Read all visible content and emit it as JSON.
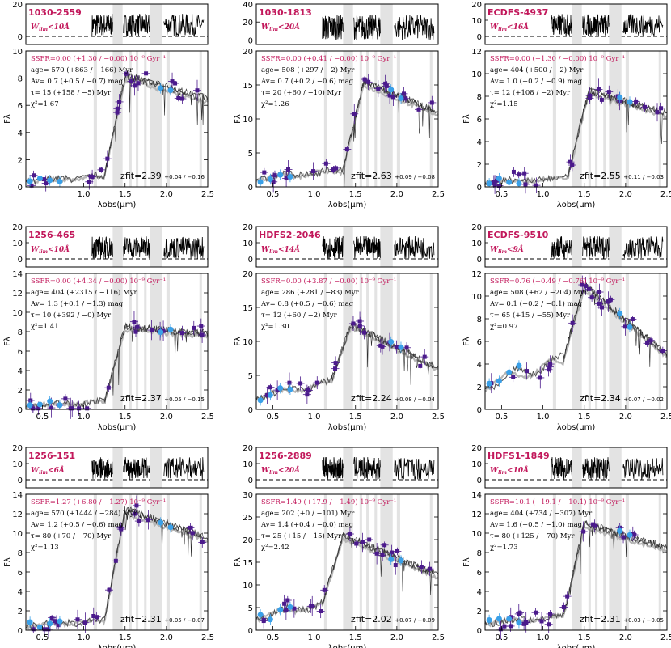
{
  "figure": {
    "x_axis_label": "λobs(μm)",
    "y_axis_label": "Fλ",
    "colors": {
      "name": "#c2185b",
      "photometry_purple": "#4b1a8c",
      "photometry_blue": "#3aa0e8",
      "model_dark": "#555555",
      "model_light": "#b5b5b5",
      "spectrum": "#000000",
      "shade": "#e3e3e3"
    }
  },
  "chart_data": [
    {
      "type": "scatter",
      "name": "1030-2559",
      "w_limit": "W",
      "w_sub": "lim",
      "w_text": "<10Å",
      "ssfr": "SSFR=0.00",
      "ssfr_unc": "+1.30 / −0.00",
      "ssfr_unit": "10⁻⁹ Gyr⁻¹",
      "age": "570",
      "age_unc": "+863 / −166",
      "av": "0.7",
      "av_unc": "+0.5 / −0.7",
      "tau": "15",
      "tau_unc": "+158 / −5",
      "chi2": "1.67",
      "zfit": "2.39",
      "zfit_unc": "+0.04 / −0.16",
      "ylim": [
        0,
        10
      ],
      "yticks": [
        0,
        2,
        4,
        6,
        8,
        10
      ],
      "xlim": [
        0.3,
        2.5
      ],
      "xticks": [
        1.0,
        1.5,
        2.0,
        2.5
      ],
      "spec_ylim": [
        -5,
        20
      ],
      "spec_yticks": [
        0,
        20
      ],
      "break_um": 1.3,
      "peak": 8.2,
      "plateau": 6.5,
      "blue_level": 0.8
    },
    {
      "type": "scatter",
      "name": "1030-1813",
      "w_limit": "W",
      "w_sub": "lim",
      "w_text": "<20Å",
      "ssfr": "SSFR=0.00",
      "ssfr_unc": "+0.41 / −0.00",
      "ssfr_unit": "10⁻⁹ Gyr⁻¹",
      "age": "508",
      "age_unc": "+297 / −2",
      "av": "0.7",
      "av_unc": "+0.2 / −0.6",
      "tau": "20",
      "tau_unc": "+60 / −10",
      "chi2": "1.26",
      "zfit": "2.63",
      "zfit_unc": "+0.09 / −0.08",
      "ylim": [
        0,
        20
      ],
      "yticks": [
        0,
        5,
        10,
        15,
        20
      ],
      "xlim": [
        0.3,
        2.5
      ],
      "xticks": [
        0.5,
        1.0,
        1.5,
        2.0,
        2.5
      ],
      "spec_ylim": [
        -5,
        40
      ],
      "spec_yticks": [
        0,
        20,
        40
      ],
      "break_um": 1.4,
      "peak": 15.5,
      "plateau": 11.0,
      "blue_level": 2.5
    },
    {
      "type": "scatter",
      "name": "ECDFS-4937",
      "w_limit": "W",
      "w_sub": "lim",
      "w_text": "<16Å",
      "ssfr": "SSFR=0.00",
      "ssfr_unc": "+1.30 / −0.00",
      "ssfr_unit": "10⁻⁹ Gyr⁻¹",
      "age": "404",
      "age_unc": "+500 / −2",
      "av": "1.0",
      "av_unc": "+0.2 / −0.9",
      "tau": "12",
      "tau_unc": "+108 / −2",
      "chi2": "1.15",
      "zfit": "2.55",
      "zfit_unc": "+0.11 / −0.03",
      "ylim": [
        0,
        12
      ],
      "yticks": [
        0,
        2,
        4,
        6,
        8,
        10,
        12
      ],
      "xlim": [
        0.3,
        2.5
      ],
      "xticks": [
        0.5,
        1.0,
        1.5,
        2.0,
        2.5
      ],
      "spec_ylim": [
        -5,
        20
      ],
      "spec_yticks": [
        0,
        10,
        20
      ],
      "break_um": 1.35,
      "peak": 8.5,
      "plateau": 6.5,
      "blue_level": 0.8
    },
    {
      "type": "scatter",
      "name": "1256-465",
      "w_limit": "W",
      "w_sub": "lim",
      "w_text": "<10Å",
      "ssfr": "SSFR=0.00",
      "ssfr_unc": "+4.34 / −0.00",
      "ssfr_unit": "10⁻⁹ Gyr⁻¹",
      "age": "404",
      "age_unc": "+2315 / −116",
      "av": "1.3",
      "av_unc": "+0.1 / −1.3",
      "tau": "10",
      "tau_unc": "+392 / −0",
      "chi2": "1.41",
      "zfit": "2.37",
      "zfit_unc": "+0.05 / −0.15",
      "ylim": [
        0,
        14
      ],
      "yticks": [
        0,
        2,
        4,
        6,
        8,
        10,
        12,
        14
      ],
      "xlim": [
        0.3,
        2.5
      ],
      "xticks": [
        0.5,
        1.0,
        1.5,
        2.0,
        2.5
      ],
      "spec_ylim": [
        -5,
        20
      ],
      "spec_yticks": [
        0,
        10,
        20
      ],
      "break_um": 1.3,
      "peak": 8.5,
      "plateau": 7.8,
      "blue_level": 0.8
    },
    {
      "type": "scatter",
      "name": "HDFS2-2046",
      "w_limit": "W",
      "w_sub": "lim",
      "w_text": "<14Å",
      "ssfr": "SSFR=0.00",
      "ssfr_unc": "+3.87 / −0.00",
      "ssfr_unit": "10⁻⁹ Gyr⁻¹",
      "age": "286",
      "age_unc": "+281 / −83",
      "av": "0.8",
      "av_unc": "+0.5 / −0.6",
      "tau": "12",
      "tau_unc": "+60 / −2",
      "chi2": "1.30",
      "zfit": "2.24",
      "zfit_unc": "+0.08 / −0.04",
      "ylim": [
        0,
        20
      ],
      "yticks": [
        0,
        5,
        10,
        15,
        20
      ],
      "xlim": [
        0.3,
        2.5
      ],
      "xticks": [
        0.5,
        1.0,
        1.5,
        2.0,
        2.5
      ],
      "spec_ylim": [
        -5,
        20
      ],
      "spec_yticks": [
        0,
        10,
        20
      ],
      "break_um": 1.25,
      "peak": 12.5,
      "plateau": 6.0,
      "blue_level": 4.0
    },
    {
      "type": "scatter",
      "name": "ECDFS-9510",
      "w_limit": "W",
      "w_sub": "lim",
      "w_text": "<9Å",
      "ssfr": "SSFR=0.76",
      "ssfr_unc": "+0.49 / −0.76",
      "ssfr_unit": "10⁻⁹ Gyr⁻¹",
      "age": "508",
      "age_unc": "+62 / −204",
      "av": "0.1",
      "av_unc": "+0.2 / −0.1",
      "tau": "65",
      "tau_unc": "+15 / −55",
      "chi2": "0.97",
      "zfit": "2.34",
      "zfit_unc": "+0.07 / −0.02",
      "ylim": [
        0,
        12
      ],
      "yticks": [
        0,
        2,
        4,
        6,
        8,
        10,
        12
      ],
      "xlim": [
        0.3,
        2.5
      ],
      "xticks": [
        0.5,
        1.0,
        1.5,
        2.0,
        2.5
      ],
      "spec_ylim": [
        -5,
        20
      ],
      "spec_yticks": [
        0,
        10,
        20
      ],
      "break_um": 1.3,
      "peak": 11.0,
      "plateau": 4.8,
      "blue_level": 4.5
    },
    {
      "type": "scatter",
      "name": "1256-151",
      "w_limit": "W",
      "w_sub": "lim",
      "w_text": "<6Å",
      "ssfr": "SSFR=1.27",
      "ssfr_unc": "+6.80 / −1.27",
      "ssfr_unit": "10⁻⁹ Gyr⁻¹",
      "age": "570",
      "age_unc": "+1444 / −284",
      "av": "1.2",
      "av_unc": "+0.5 / −0.6",
      "tau": "80",
      "tau_unc": "+70 / −70",
      "chi2": "1.13",
      "zfit": "2.31",
      "zfit_unc": "+0.05 / −0.07",
      "ylim": [
        0,
        14
      ],
      "yticks": [
        0,
        2,
        4,
        6,
        8,
        10,
        12,
        14
      ],
      "xlim": [
        0.3,
        2.5
      ],
      "xticks": [
        0.5,
        1.0,
        1.5,
        2.0,
        2.5
      ],
      "spec_ylim": [
        -5,
        20
      ],
      "spec_yticks": [
        0,
        10,
        20
      ],
      "break_um": 1.3,
      "peak": 12.5,
      "plateau": 9.5,
      "blue_level": 1.0
    },
    {
      "type": "scatter",
      "name": "1256-2889",
      "w_limit": "W",
      "w_sub": "lim",
      "w_text": "<20Å",
      "ssfr": "SSFR=1.49",
      "ssfr_unc": "+17.9 / −1.49",
      "ssfr_unit": "10⁻⁹ Gyr⁻¹",
      "age": "202",
      "age_unc": "+0 / −101",
      "av": "1.4",
      "av_unc": "+0.4 / −0.0",
      "tau": "25",
      "tau_unc": "+15 / −15",
      "chi2": "2.42",
      "zfit": "2.02",
      "zfit_unc": "+0.07 / −0.09",
      "ylim": [
        0,
        30
      ],
      "yticks": [
        0,
        5,
        10,
        15,
        20,
        25,
        30
      ],
      "xlim": [
        0.3,
        2.5
      ],
      "xticks": [
        0.5,
        1.0,
        1.5,
        2.0,
        2.5
      ],
      "spec_ylim": [
        -5,
        20
      ],
      "spec_yticks": [
        0,
        10,
        20
      ],
      "break_um": 1.15,
      "peak": 21.0,
      "plateau": 12.0,
      "blue_level": 6.0
    },
    {
      "type": "scatter",
      "name": "HDFS1-1849",
      "w_limit": "W",
      "w_sub": "lim",
      "w_text": "<10Å",
      "ssfr": "SSFR=10.1",
      "ssfr_unc": "+19.1 / −10.1",
      "ssfr_unit": "10⁻⁹ Gyr⁻¹",
      "age": "404",
      "age_unc": "+734 / −307",
      "av": "1.6",
      "av_unc": "+0.5 / −1.0",
      "tau": "80",
      "tau_unc": "+125 / −70",
      "chi2": "1.73",
      "zfit": "2.31",
      "zfit_unc": "+0.03 / −0.05",
      "ylim": [
        0,
        14
      ],
      "yticks": [
        0,
        2,
        4,
        6,
        8,
        10,
        12,
        14
      ],
      "xlim": [
        0.3,
        2.5
      ],
      "xticks": [
        0.5,
        1.0,
        1.5,
        2.0,
        2.5
      ],
      "spec_ylim": [
        -5,
        20
      ],
      "spec_yticks": [
        0,
        10,
        20
      ],
      "break_um": 1.3,
      "peak": 11.0,
      "plateau": 8.5,
      "blue_level": 1.5
    }
  ]
}
